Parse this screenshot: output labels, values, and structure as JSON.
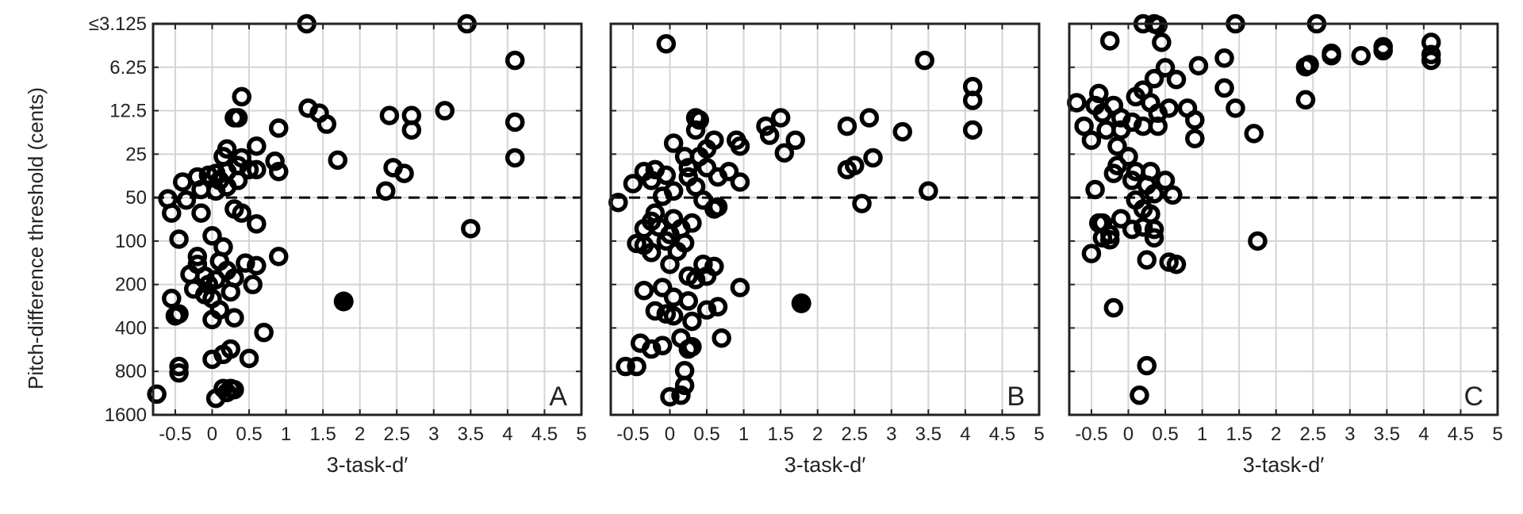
{
  "shared": {
    "ylabel": "Pitch-difference threshold (cents)",
    "xlabel": "3-task-d′",
    "y_ticks": [
      "≤3.125",
      "6.25",
      "12.5",
      "25",
      "50",
      "100",
      "200",
      "400",
      "800",
      "1600"
    ],
    "x_ticks": [
      "-0.5",
      "0",
      "0.5",
      "1",
      "1.5",
      "2",
      "2.5",
      "3",
      "3.5",
      "4",
      "4.5",
      "5"
    ]
  },
  "chart_data": [
    {
      "type": "scatter",
      "panel_label": "A",
      "xlabel": "3-task-d′",
      "ylabel": "Pitch-difference threshold (cents)",
      "xlim": [
        -0.8,
        5
      ],
      "ylim_octaves_from_3.125": [
        0,
        9
      ],
      "y_scale": "log2 (inverted)",
      "reference_line": {
        "y": 50,
        "style": "dashed"
      },
      "grid": true,
      "points": [
        [
          1.28,
          3.1
        ],
        [
          3.45,
          3.1
        ],
        [
          4.1,
          5.6
        ],
        [
          1.3,
          12
        ],
        [
          1.45,
          13
        ],
        [
          1.55,
          15.5
        ],
        [
          1.7,
          27.5
        ],
        [
          2.4,
          13.5
        ],
        [
          2.7,
          13.5
        ],
        [
          2.7,
          17
        ],
        [
          3.15,
          12.5
        ],
        [
          4.1,
          15
        ],
        [
          4.1,
          26.5
        ],
        [
          0.4,
          10
        ],
        [
          0.3,
          14
        ],
        [
          0.35,
          14
        ],
        [
          0.9,
          16.5
        ],
        [
          0.2,
          23
        ],
        [
          0.6,
          22
        ],
        [
          0.85,
          28
        ],
        [
          0.9,
          33
        ],
        [
          0.15,
          26
        ],
        [
          0.4,
          26.5
        ],
        [
          0.05,
          34
        ],
        [
          0.2,
          33
        ],
        [
          0.35,
          30
        ],
        [
          0.5,
          32
        ],
        [
          0.6,
          32
        ],
        [
          2.45,
          31
        ],
        [
          2.6,
          34
        ],
        [
          2.35,
          45
        ],
        [
          -0.4,
          39
        ],
        [
          -0.2,
          36
        ],
        [
          -0.05,
          35
        ],
        [
          0.1,
          38
        ],
        [
          -0.15,
          44
        ],
        [
          0.05,
          45
        ],
        [
          0.2,
          42
        ],
        [
          0.35,
          38
        ],
        [
          -0.6,
          51
        ],
        [
          -0.35,
          52
        ],
        [
          0.3,
          60
        ],
        [
          0.4,
          64
        ],
        [
          -0.55,
          64
        ],
        [
          -0.15,
          64
        ],
        [
          0.6,
          76
        ],
        [
          3.5,
          82
        ],
        [
          0.0,
          92
        ],
        [
          -0.45,
          97
        ],
        [
          0.15,
          110
        ],
        [
          0.9,
          128
        ],
        [
          -0.2,
          128
        ],
        [
          -0.2,
          145
        ],
        [
          0.1,
          138
        ],
        [
          0.45,
          142
        ],
        [
          0.6,
          148
        ],
        [
          0.2,
          160
        ],
        [
          -0.3,
          170
        ],
        [
          -0.1,
          175
        ],
        [
          0.05,
          185
        ],
        [
          -0.05,
          200
        ],
        [
          0.3,
          180
        ],
        [
          0.55,
          200
        ],
        [
          -0.25,
          215
        ],
        [
          -0.1,
          235
        ],
        [
          0.25,
          225
        ],
        [
          0.0,
          250
        ],
        [
          -0.55,
          250
        ],
        [
          -0.45,
          320
        ],
        [
          -0.5,
          330
        ],
        [
          0.0,
          350
        ],
        [
          0.3,
          340
        ],
        [
          0.1,
          300
        ],
        [
          0.7,
          430
        ],
        [
          0.25,
          560
        ],
        [
          0.15,
          610
        ],
        [
          0.5,
          650
        ],
        [
          0.0,
          660
        ],
        [
          -0.45,
          740
        ],
        [
          -0.45,
          820
        ],
        [
          0.15,
          1050
        ],
        [
          0.25,
          1050
        ],
        [
          0.3,
          1070
        ],
        [
          -0.75,
          1150
        ],
        [
          0.05,
          1230
        ],
        [
          0.2,
          1120
        ]
      ],
      "highlight_point": [
        1.78,
        262
      ]
    },
    {
      "type": "scatter",
      "panel_label": "B",
      "xlabel": "3-task-d′",
      "ylabel": "",
      "xlim": [
        -0.8,
        5
      ],
      "ylim_octaves_from_3.125": [
        0,
        9
      ],
      "y_scale": "log2 (inverted)",
      "reference_line": {
        "y": 50,
        "style": "dashed"
      },
      "grid": true,
      "points": [
        [
          -0.05,
          4.3
        ],
        [
          3.45,
          5.6
        ],
        [
          4.1,
          8.5
        ],
        [
          4.1,
          10.6
        ],
        [
          4.1,
          17
        ],
        [
          1.5,
          14
        ],
        [
          1.3,
          16
        ],
        [
          1.35,
          18.5
        ],
        [
          1.7,
          20
        ],
        [
          1.55,
          24.5
        ],
        [
          2.4,
          16
        ],
        [
          2.7,
          14
        ],
        [
          3.15,
          17.5
        ],
        [
          2.75,
          26.5
        ],
        [
          2.5,
          30
        ],
        [
          2.4,
          32
        ],
        [
          2.6,
          55
        ],
        [
          3.5,
          45
        ],
        [
          0.9,
          20
        ],
        [
          0.95,
          22
        ],
        [
          0.35,
          14
        ],
        [
          0.4,
          14.5
        ],
        [
          0.35,
          17
        ],
        [
          0.6,
          20
        ],
        [
          0.05,
          21
        ],
        [
          0.5,
          23
        ],
        [
          0.2,
          26
        ],
        [
          0.4,
          26
        ],
        [
          0.25,
          31
        ],
        [
          0.5,
          31
        ],
        [
          0.8,
          33
        ],
        [
          0.65,
          36
        ],
        [
          0.95,
          39
        ],
        [
          -0.2,
          32
        ],
        [
          -0.35,
          33
        ],
        [
          -0.05,
          35
        ],
        [
          -0.25,
          38
        ],
        [
          -0.5,
          40
        ],
        [
          0.05,
          45
        ],
        [
          0.25,
          36
        ],
        [
          0.35,
          42
        ],
        [
          0.45,
          52
        ],
        [
          -0.1,
          49
        ],
        [
          -0.7,
          54
        ],
        [
          0.6,
          60
        ],
        [
          0.65,
          58
        ],
        [
          -0.2,
          64
        ],
        [
          -0.25,
          73
        ],
        [
          -0.15,
          80
        ],
        [
          -0.35,
          82
        ],
        [
          0.05,
          70
        ],
        [
          0.3,
          75
        ],
        [
          0.15,
          82
        ],
        [
          0.0,
          90
        ],
        [
          -0.05,
          100
        ],
        [
          -0.45,
          104
        ],
        [
          -0.35,
          107
        ],
        [
          -0.25,
          120
        ],
        [
          0.2,
          103
        ],
        [
          0.0,
          145
        ],
        [
          0.1,
          118
        ],
        [
          0.45,
          145
        ],
        [
          0.6,
          150
        ],
        [
          0.25,
          175
        ],
        [
          0.35,
          185
        ],
        [
          0.5,
          175
        ],
        [
          0.95,
          210
        ],
        [
          -0.35,
          220
        ],
        [
          0.05,
          245
        ],
        [
          -0.1,
          210
        ],
        [
          0.25,
          260
        ],
        [
          0.5,
          300
        ],
        [
          0.65,
          285
        ],
        [
          -0.2,
          305
        ],
        [
          -0.05,
          320
        ],
        [
          0.05,
          330
        ],
        [
          0.3,
          360
        ],
        [
          0.15,
          470
        ],
        [
          -0.4,
          510
        ],
        [
          -0.1,
          530
        ],
        [
          0.25,
          560
        ],
        [
          0.3,
          540
        ],
        [
          -0.25,
          560
        ],
        [
          0.7,
          470
        ],
        [
          -0.6,
          740
        ],
        [
          -0.45,
          740
        ],
        [
          0.2,
          790
        ],
        [
          0.2,
          1000
        ],
        [
          0.15,
          1170
        ],
        [
          0.0,
          1200
        ]
      ],
      "highlight_point": [
        1.78,
        270
      ]
    },
    {
      "type": "scatter",
      "panel_label": "C",
      "xlabel": "3-task-d′",
      "ylabel": "",
      "xlim": [
        -0.8,
        5
      ],
      "ylim_octaves_from_3.125": [
        0,
        9
      ],
      "y_scale": "log2 (inverted)",
      "reference_line": {
        "y": 50,
        "style": "dashed"
      },
      "grid": true,
      "points": [
        [
          0.2,
          3.1
        ],
        [
          0.35,
          3.1
        ],
        [
          0.4,
          3.2
        ],
        [
          1.45,
          3.1
        ],
        [
          2.55,
          3.1
        ],
        [
          -0.25,
          4.1
        ],
        [
          0.45,
          4.2
        ],
        [
          4.1,
          4.2
        ],
        [
          4.1,
          5.1
        ],
        [
          4.1,
          5.6
        ],
        [
          3.45,
          4.5
        ],
        [
          3.45,
          4.8
        ],
        [
          3.15,
          5.2
        ],
        [
          2.75,
          5
        ],
        [
          2.75,
          5.2
        ],
        [
          2.45,
          6
        ],
        [
          2.4,
          6.2
        ],
        [
          1.3,
          5.4
        ],
        [
          0.5,
          6.3
        ],
        [
          0.65,
          7.6
        ],
        [
          0.95,
          6.1
        ],
        [
          1.3,
          8.7
        ],
        [
          1.45,
          12
        ],
        [
          2.4,
          10.5
        ],
        [
          0.35,
          7.5
        ],
        [
          0.2,
          9
        ],
        [
          0.1,
          10
        ],
        [
          0.3,
          11
        ],
        [
          0.55,
          12
        ],
        [
          0.4,
          13
        ],
        [
          0.8,
          12
        ],
        [
          0.9,
          14.5
        ],
        [
          0.2,
          16
        ],
        [
          0.4,
          16
        ],
        [
          -0.1,
          17
        ],
        [
          0.05,
          15
        ],
        [
          1.7,
          18
        ],
        [
          0.9,
          19.5
        ],
        [
          -0.4,
          9.5
        ],
        [
          -0.45,
          11.5
        ],
        [
          -0.2,
          11.5
        ],
        [
          -0.35,
          13
        ],
        [
          -0.1,
          14
        ],
        [
          -0.7,
          11
        ],
        [
          -0.6,
          16
        ],
        [
          -0.5,
          20
        ],
        [
          -0.3,
          17
        ],
        [
          -0.15,
          22
        ],
        [
          0.0,
          26
        ],
        [
          -0.15,
          30
        ],
        [
          -0.2,
          34
        ],
        [
          0.1,
          33
        ],
        [
          0.3,
          33
        ],
        [
          0.5,
          38
        ],
        [
          0.05,
          38
        ],
        [
          0.25,
          41
        ],
        [
          0.6,
          48
        ],
        [
          -0.45,
          44
        ],
        [
          0.35,
          47
        ],
        [
          0.1,
          52
        ],
        [
          0.2,
          60
        ],
        [
          0.3,
          65
        ],
        [
          -0.1,
          70
        ],
        [
          -0.4,
          75
        ],
        [
          -0.35,
          75
        ],
        [
          0.05,
          83
        ],
        [
          0.2,
          80
        ],
        [
          0.35,
          83
        ],
        [
          -0.25,
          90
        ],
        [
          -0.35,
          95
        ],
        [
          0.35,
          95
        ],
        [
          -0.25,
          98
        ],
        [
          1.75,
          100
        ],
        [
          -0.5,
          122
        ],
        [
          0.25,
          135
        ],
        [
          0.55,
          140
        ],
        [
          0.65,
          145
        ],
        [
          -0.2,
          290
        ],
        [
          0.25,
          730
        ],
        [
          0.15,
          1170
        ]
      ]
    }
  ]
}
